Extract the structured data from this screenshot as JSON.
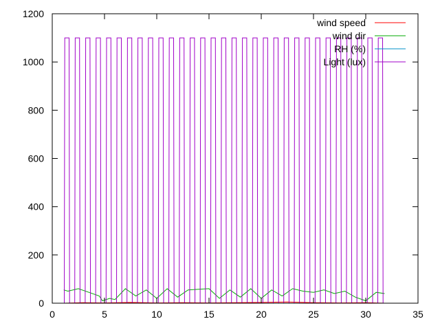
{
  "chart_data": {
    "type": "line",
    "title": "",
    "xlabel": "",
    "ylabel": "",
    "xlim": [
      0,
      35
    ],
    "ylim": [
      0,
      1200
    ],
    "xticks": [
      0,
      5,
      10,
      15,
      20,
      25,
      30,
      35
    ],
    "yticks": [
      0,
      200,
      400,
      600,
      800,
      1000,
      1200
    ],
    "grid": false,
    "legend_position": "top-right",
    "series": [
      {
        "name": "wind speed",
        "color": "#ff0000",
        "x": [
          1.1,
          3.0,
          5.0,
          7.5,
          10.0,
          12.5,
          15.0,
          17.5,
          20.0,
          22.5,
          25.0,
          27.5,
          30.0,
          31.8
        ],
        "y": [
          0,
          2,
          1,
          3,
          1,
          2,
          1,
          2,
          3,
          5,
          2,
          1,
          2,
          0
        ]
      },
      {
        "name": "wind dir",
        "color": "#00aa00",
        "x": [
          1.1,
          1.5,
          2.5,
          3.5,
          4.5,
          4.8,
          5.5,
          6.0,
          7.0,
          8.0,
          9.0,
          10.0,
          11.0,
          12.0,
          13.0,
          14.0,
          15.0,
          16.0,
          17.0,
          18.0,
          19.0,
          20.0,
          21.0,
          22.0,
          23.0,
          24.0,
          25.0,
          26.0,
          27.0,
          28.0,
          29.0,
          30.0,
          31.0,
          31.8
        ],
        "y": [
          55,
          50,
          60,
          45,
          30,
          10,
          20,
          15,
          60,
          30,
          55,
          20,
          60,
          25,
          55,
          58,
          60,
          20,
          55,
          25,
          60,
          20,
          55,
          30,
          60,
          50,
          45,
          55,
          40,
          50,
          25,
          10,
          45,
          40
        ]
      },
      {
        "name": "RH (%)",
        "color": "#0090c8",
        "x": [
          1.1,
          31.8
        ],
        "y": [
          0,
          0
        ]
      },
      {
        "name": "Light (lux)",
        "color": "#a000c8",
        "type": "square-wave",
        "x_start": 1.15,
        "x_end": 31.7,
        "period": 1.0,
        "high_fraction": 0.46,
        "high": 1100,
        "low": 0
      }
    ]
  }
}
